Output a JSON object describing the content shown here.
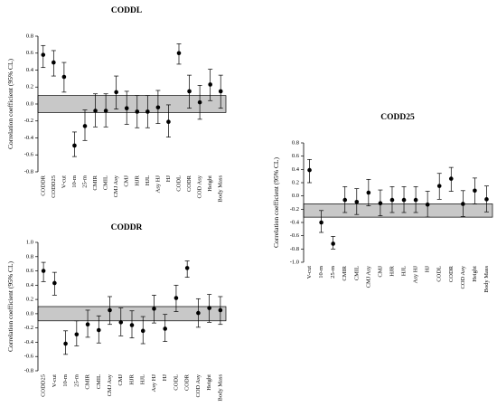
{
  "chart_data": [
    {
      "type": "errorbar",
      "title": "CODDL",
      "y_label": "Correlation coefficient (95% CL)",
      "categories": [
        "CODDR",
        "CODD25",
        "V-cut",
        "10-m",
        "25-m",
        "CMIR",
        "CMIL",
        "CMJ Asy",
        "CMJ",
        "HJR",
        "HJL",
        "Asy HJ",
        "HJ",
        "CODL",
        "CODR",
        "COD Asy",
        "Height",
        "Body Mass"
      ],
      "values": [
        0.58,
        0.49,
        0.32,
        -0.49,
        -0.26,
        -0.08,
        -0.08,
        0.14,
        -0.05,
        -0.09,
        -0.09,
        -0.04,
        -0.21,
        0.6,
        0.15,
        0.02,
        0.23,
        0.15
      ],
      "lower": [
        0.43,
        0.33,
        0.14,
        -0.62,
        -0.43,
        -0.27,
        -0.27,
        -0.06,
        -0.24,
        -0.28,
        -0.28,
        -0.23,
        -0.39,
        0.47,
        -0.05,
        -0.18,
        0.04,
        -0.05
      ],
      "upper": [
        0.69,
        0.63,
        0.49,
        -0.33,
        -0.07,
        0.12,
        0.12,
        0.33,
        0.15,
        0.1,
        0.1,
        0.16,
        -0.01,
        0.71,
        0.34,
        0.22,
        0.41,
        0.34
      ],
      "band": [
        -0.1,
        0.1
      ],
      "band_color": "#c8c8c8",
      "color": "#000000",
      "ylim": [
        -0.8,
        0.8
      ],
      "yticks": [
        -0.8,
        -0.6,
        -0.4,
        -0.2,
        {
          "value": 0,
          "label": "0.0"
        },
        0.2,
        0.4,
        0.6,
        0.8
      ]
    },
    {
      "type": "errorbar",
      "title": "CODD25",
      "y_label": "Correlation coefficient (95% CL)",
      "categories": [
        "V-cut",
        "10-m",
        "25-m",
        "CMIR",
        "CMIL",
        "CMJ Asy",
        "CMJ",
        "HJR",
        "HJL",
        "Asy HJ",
        "HJ",
        "CODL",
        "CODR",
        "COD Asy",
        "Height",
        "Body Mass"
      ],
      "values": [
        0.39,
        -0.4,
        -0.72,
        -0.06,
        -0.09,
        0.05,
        -0.11,
        -0.06,
        -0.06,
        -0.06,
        -0.13,
        0.15,
        0.26,
        -0.12,
        0.08,
        -0.05
      ],
      "lower": [
        0.2,
        -0.55,
        -0.8,
        -0.25,
        -0.28,
        -0.15,
        -0.3,
        -0.25,
        -0.25,
        -0.25,
        -0.32,
        -0.05,
        0.07,
        -0.31,
        -0.12,
        -0.24
      ],
      "upper": [
        0.55,
        -0.22,
        -0.61,
        0.14,
        0.11,
        0.25,
        0.09,
        0.14,
        0.14,
        0.14,
        0.07,
        0.34,
        0.43,
        0.08,
        0.27,
        0.15
      ],
      "band": [
        -0.32,
        -0.12
      ],
      "band_color": "#c8c8c8",
      "color": "#000000",
      "ylim": [
        -1.0,
        0.8
      ],
      "yticks": [
        {
          "value": -1,
          "label": "-1.0"
        },
        -0.8,
        -0.6,
        -0.4,
        -0.2,
        {
          "value": 0,
          "label": "0.0"
        },
        0.2,
        0.4,
        0.6,
        0.8
      ]
    },
    {
      "type": "errorbar",
      "title": "CODDR",
      "y_label": "Correlation coefficient (95% CL)",
      "categories": [
        "CODD25",
        "V-cut",
        "10-m",
        "25-m",
        "CMIR",
        "CMIL",
        "CMJ Asy",
        "CMJ",
        "HJR",
        "HJL",
        "Asy HJ",
        "HJ",
        "CODL",
        "CODR",
        "COD Asy",
        "Height",
        "Body Mass"
      ],
      "values": [
        0.6,
        0.43,
        -0.42,
        -0.29,
        -0.15,
        -0.23,
        0.05,
        -0.12,
        -0.16,
        -0.24,
        0.07,
        -0.21,
        0.22,
        0.64,
        0.01,
        0.08,
        0.05
      ],
      "lower": [
        0.45,
        0.26,
        -0.57,
        -0.45,
        -0.33,
        -0.41,
        -0.15,
        -0.31,
        -0.34,
        -0.42,
        -0.13,
        -0.39,
        0.03,
        0.51,
        -0.19,
        -0.12,
        -0.15
      ],
      "upper": [
        0.72,
        0.58,
        -0.24,
        -0.1,
        0.05,
        -0.03,
        0.24,
        0.08,
        0.04,
        -0.04,
        0.26,
        -0.01,
        0.4,
        0.74,
        0.21,
        0.27,
        0.24
      ],
      "band": [
        -0.1,
        0.1
      ],
      "band_color": "#c8c8c8",
      "color": "#000000",
      "ylim": [
        -0.8,
        1.0
      ],
      "yticks": [
        -0.8,
        -0.6,
        -0.4,
        -0.2,
        {
          "value": 0,
          "label": "0.0"
        },
        0.2,
        0.4,
        0.6,
        0.8,
        {
          "value": 1,
          "label": "1.0"
        }
      ]
    }
  ]
}
